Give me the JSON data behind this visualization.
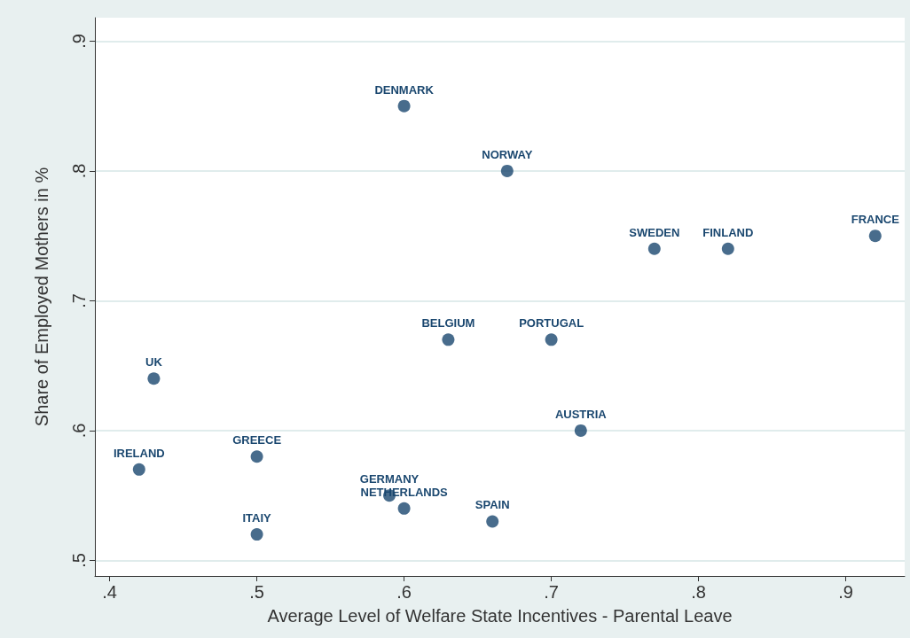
{
  "chart_data": {
    "type": "scatter",
    "xlabel": "Average Level of Welfare State Incentives - Parental Leave",
    "ylabel": "Share of Employed Mothers in %",
    "x": [
      0.6,
      0.67,
      0.77,
      0.82,
      0.92,
      0.63,
      0.7,
      0.43,
      0.72,
      0.42,
      0.5,
      0.59,
      0.6,
      0.66,
      0.5
    ],
    "series": [
      {
        "color": "#1a476f",
        "values": [
          0.85,
          0.8,
          0.74,
          0.74,
          0.75,
          0.67,
          0.67,
          0.64,
          0.6,
          0.57,
          0.58,
          0.55,
          0.54,
          0.53,
          0.52
        ]
      }
    ],
    "annotations": [
      {
        "text": "DENMARK",
        "x": 0.6,
        "y": 0.85
      },
      {
        "text": "NORWAY",
        "x": 0.67,
        "y": 0.8
      },
      {
        "text": "SWEDEN",
        "x": 0.77,
        "y": 0.74
      },
      {
        "text": "FINLAND",
        "x": 0.82,
        "y": 0.74
      },
      {
        "text": "FRANCE",
        "x": 0.92,
        "y": 0.75
      },
      {
        "text": "BELGIUM",
        "x": 0.63,
        "y": 0.67
      },
      {
        "text": "PORTUGAL",
        "x": 0.7,
        "y": 0.67
      },
      {
        "text": "UK",
        "x": 0.43,
        "y": 0.64
      },
      {
        "text": "AUSTRIA",
        "x": 0.72,
        "y": 0.6
      },
      {
        "text": "IRELAND",
        "x": 0.42,
        "y": 0.57
      },
      {
        "text": "GREECE",
        "x": 0.5,
        "y": 0.58
      },
      {
        "text": "GERMANY",
        "x": 0.59,
        "y": 0.55
      },
      {
        "text": "NETHERLANDS",
        "x": 0.6,
        "y": 0.54
      },
      {
        "text": "SPAIN",
        "x": 0.66,
        "y": 0.53
      },
      {
        "text": "ITAIY",
        "x": 0.5,
        "y": 0.52
      }
    ],
    "xlim": [
      0.39,
      0.94
    ],
    "xticks": [
      {
        "value": 0.4,
        "label": ".4"
      },
      {
        "value": 0.5,
        "label": ".5"
      },
      {
        "value": 0.6,
        "label": ".6"
      },
      {
        "value": 0.7,
        "label": ".7"
      },
      {
        "value": 0.8,
        "label": ".8"
      },
      {
        "value": 0.9,
        "label": ".9"
      }
    ],
    "ylim": [
      0.488,
      0.918
    ],
    "yticks": [
      {
        "value": 0.5,
        "label": ".5"
      },
      {
        "value": 0.6,
        "label": ".6"
      },
      {
        "value": 0.7,
        "label": ".7"
      },
      {
        "value": 0.8,
        "label": ".8"
      },
      {
        "value": 0.9,
        "label": ".9"
      }
    ],
    "grid": "y",
    "marker": "circle"
  }
}
